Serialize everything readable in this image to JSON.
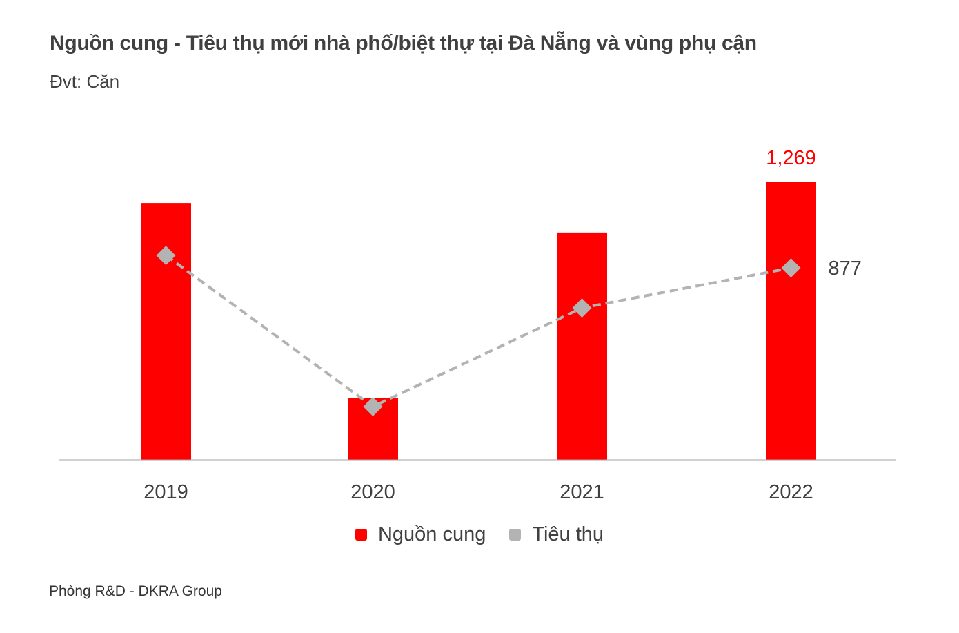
{
  "header": {
    "title": "Nguồn cung - Tiêu thụ mới nhà phố/biệt thự tại Đà Nẵng và vùng phụ cận",
    "unit": "Đvt: Căn"
  },
  "footer": {
    "source": "Phòng R&D - DKRA Group"
  },
  "colors": {
    "supply": "#ff0000",
    "consumption": "#b3b3b3",
    "axis": "#a6a6a6",
    "label": "#404040"
  },
  "chart_data": {
    "type": "bar",
    "title": "Nguồn cung - Tiêu thụ mới nhà phố/biệt thự tại Đà Nẵng và vùng phụ cận",
    "subtitle": "Đvt: Căn",
    "xlabel": "",
    "ylabel": "",
    "categories": [
      "2019",
      "2020",
      "2021",
      "2022"
    ],
    "ylim": [
      0,
      1400
    ],
    "grid": false,
    "legend_position": "bottom-center",
    "series": [
      {
        "name": "Nguồn cung",
        "kind": "bar",
        "color": "#ff0000",
        "values": [
          1174,
          281,
          1039,
          1269
        ],
        "data_labels": [
          null,
          null,
          null,
          "1,269"
        ]
      },
      {
        "name": "Tiêu thụ",
        "kind": "line-dashed-diamond",
        "color": "#b3b3b3",
        "values": [
          934,
          243,
          694,
          877
        ],
        "data_labels": [
          null,
          null,
          null,
          "877"
        ]
      }
    ]
  }
}
